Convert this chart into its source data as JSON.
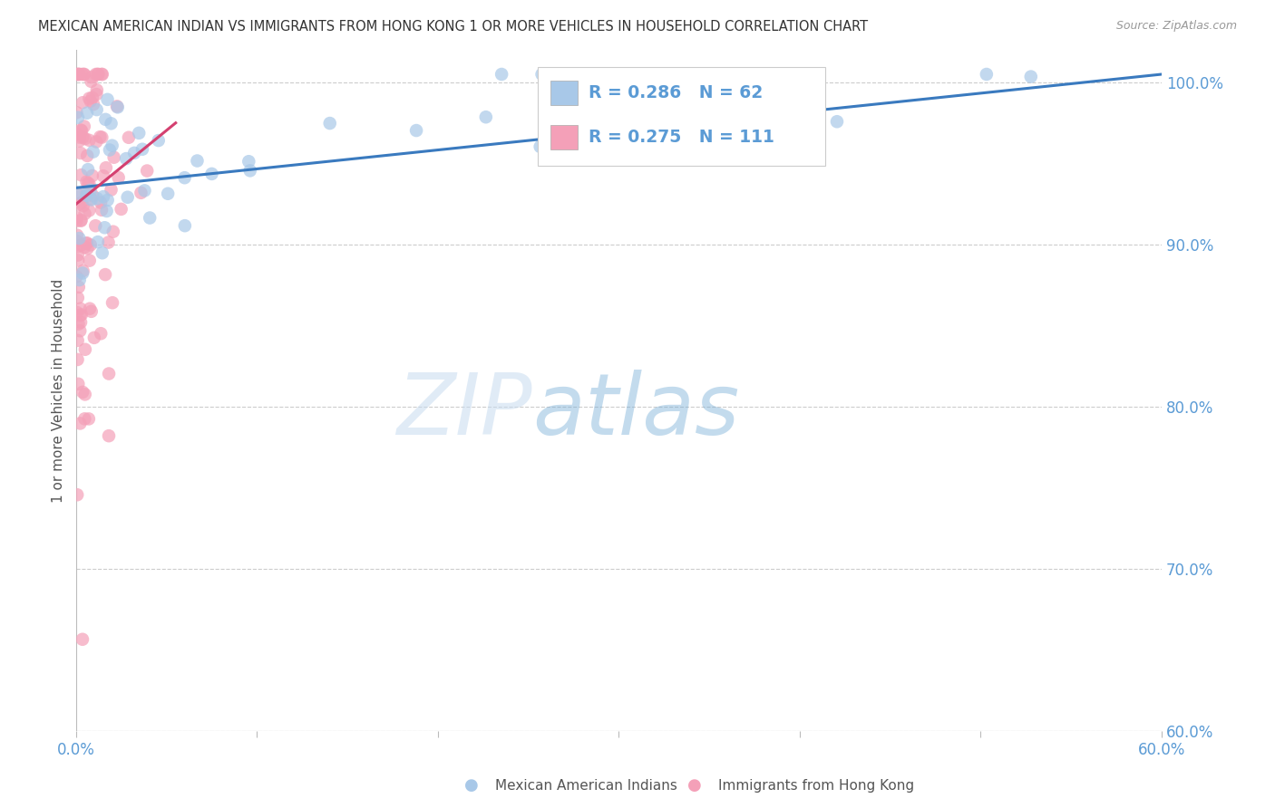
{
  "title": "MEXICAN AMERICAN INDIAN VS IMMIGRANTS FROM HONG KONG 1 OR MORE VEHICLES IN HOUSEHOLD CORRELATION CHART",
  "source": "Source: ZipAtlas.com",
  "ylabel": "1 or more Vehicles in Household",
  "legend_blue_label": "Mexican American Indians",
  "legend_pink_label": "Immigrants from Hong Kong",
  "blue_color": "#a8c8e8",
  "pink_color": "#f4a0b8",
  "trendline_blue": "#3a7abf",
  "trendline_pink": "#d44070",
  "title_color": "#333333",
  "axis_color": "#5b9bd5",
  "watermark_zip": "ZIP",
  "watermark_atlas": "atlas",
  "xlim": [
    0.0,
    0.6
  ],
  "ylim": [
    0.6,
    1.02
  ],
  "figsize": [
    14.06,
    8.92
  ],
  "dpi": 100,
  "blue_trend_x": [
    0.0,
    0.6
  ],
  "blue_trend_y": [
    0.935,
    1.005
  ],
  "pink_trend_x": [
    0.0,
    0.055
  ],
  "pink_trend_y": [
    0.925,
    0.975
  ]
}
